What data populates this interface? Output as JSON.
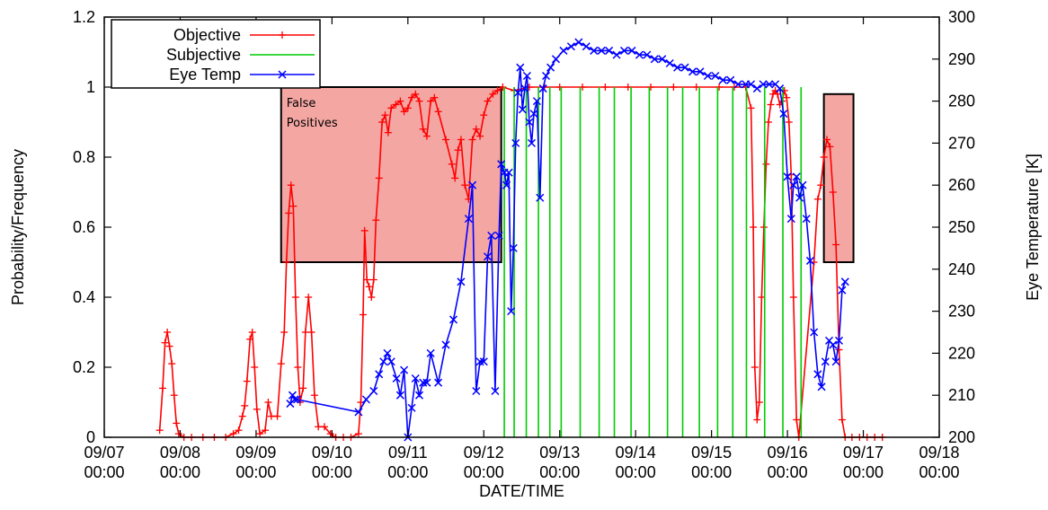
{
  "chart_data": {
    "type": "line",
    "xlabel": "DATE/TIME",
    "ylabel": "Probability/Frequency",
    "y2label": "Eye Temperature [K]",
    "xlim": [
      0,
      11
    ],
    "ylim": [
      0,
      1.2
    ],
    "y2lim": [
      200,
      300
    ],
    "x_unit": "days since 09/07 00:00",
    "x_ticks": [
      {
        "value": 0,
        "date": "09/07",
        "time": "00:00"
      },
      {
        "value": 1,
        "date": "09/08",
        "time": "00:00"
      },
      {
        "value": 2,
        "date": "09/09",
        "time": "00:00"
      },
      {
        "value": 3,
        "date": "09/10",
        "time": "00:00"
      },
      {
        "value": 4,
        "date": "09/11",
        "time": "00:00"
      },
      {
        "value": 5,
        "date": "09/12",
        "time": "00:00"
      },
      {
        "value": 6,
        "date": "09/13",
        "time": "00:00"
      },
      {
        "value": 7,
        "date": "09/14",
        "time": "00:00"
      },
      {
        "value": 8,
        "date": "09/15",
        "time": "00:00"
      },
      {
        "value": 9,
        "date": "09/16",
        "time": "00:00"
      },
      {
        "value": 10,
        "date": "09/17",
        "time": "00:00"
      },
      {
        "value": 11,
        "date": "09/18",
        "time": "00:00"
      }
    ],
    "y_ticks": [
      "0",
      "0.2",
      "0.4",
      "0.6",
      "0.8",
      "1",
      "1.2"
    ],
    "y2_ticks": [
      "200",
      "210",
      "220",
      "230",
      "240",
      "250",
      "260",
      "270",
      "280",
      "290",
      "300"
    ],
    "legend_position": "top-left",
    "series": [
      {
        "name": "Objective",
        "color": "#ff0000",
        "marker": "plus",
        "axis": "left",
        "points": [
          [
            0.73,
            0.02
          ],
          [
            0.77,
            0.14
          ],
          [
            0.8,
            0.27
          ],
          [
            0.83,
            0.3
          ],
          [
            0.86,
            0.26
          ],
          [
            0.89,
            0.21
          ],
          [
            0.92,
            0.12
          ],
          [
            0.95,
            0.04
          ],
          [
            0.98,
            0.01
          ],
          [
            1.05,
            0.0
          ],
          [
            1.15,
            0.0
          ],
          [
            1.3,
            0.0
          ],
          [
            1.45,
            0.0
          ],
          [
            1.6,
            0.0
          ],
          [
            1.7,
            0.01
          ],
          [
            1.77,
            0.02
          ],
          [
            1.82,
            0.06
          ],
          [
            1.85,
            0.09
          ],
          [
            1.88,
            0.16
          ],
          [
            1.92,
            0.28
          ],
          [
            1.95,
            0.3
          ],
          [
            1.98,
            0.2
          ],
          [
            2.01,
            0.08
          ],
          [
            2.05,
            0.01
          ],
          [
            2.12,
            0.02
          ],
          [
            2.16,
            0.1
          ],
          [
            2.2,
            0.06
          ],
          [
            2.28,
            0.06
          ],
          [
            2.33,
            0.21
          ],
          [
            2.37,
            0.3
          ],
          [
            2.4,
            0.5
          ],
          [
            2.43,
            0.64
          ],
          [
            2.46,
            0.72
          ],
          [
            2.49,
            0.66
          ],
          [
            2.52,
            0.4
          ],
          [
            2.55,
            0.2
          ],
          [
            2.58,
            0.1
          ],
          [
            2.62,
            0.14
          ],
          [
            2.65,
            0.3
          ],
          [
            2.69,
            0.4
          ],
          [
            2.73,
            0.3
          ],
          [
            2.77,
            0.12
          ],
          [
            2.82,
            0.03
          ],
          [
            2.9,
            0.03
          ],
          [
            2.98,
            0.01
          ],
          [
            3.05,
            0.0
          ],
          [
            3.15,
            0.0
          ],
          [
            3.25,
            0.0
          ],
          [
            3.35,
            0.01
          ],
          [
            3.38,
            0.1
          ],
          [
            3.41,
            0.35
          ],
          [
            3.43,
            0.59
          ],
          [
            3.46,
            0.45
          ],
          [
            3.49,
            0.43
          ],
          [
            3.52,
            0.4
          ],
          [
            3.55,
            0.45
          ],
          [
            3.58,
            0.62
          ],
          [
            3.62,
            0.74
          ],
          [
            3.66,
            0.9
          ],
          [
            3.7,
            0.92
          ],
          [
            3.74,
            0.87
          ],
          [
            3.78,
            0.94
          ],
          [
            3.84,
            0.95
          ],
          [
            3.9,
            0.96
          ],
          [
            3.95,
            0.93
          ],
          [
            4.0,
            0.94
          ],
          [
            4.05,
            0.97
          ],
          [
            4.1,
            0.98
          ],
          [
            4.15,
            0.96
          ],
          [
            4.2,
            0.88
          ],
          [
            4.25,
            0.86
          ],
          [
            4.3,
            0.96
          ],
          [
            4.35,
            0.97
          ],
          [
            4.4,
            0.93
          ],
          [
            4.5,
            0.85
          ],
          [
            4.58,
            0.78
          ],
          [
            4.62,
            0.74
          ],
          [
            4.66,
            0.82
          ],
          [
            4.7,
            0.85
          ],
          [
            4.75,
            0.72
          ],
          [
            4.8,
            0.68
          ],
          [
            4.85,
            0.85
          ],
          [
            4.9,
            0.88
          ],
          [
            4.95,
            0.86
          ],
          [
            5.0,
            0.92
          ],
          [
            5.05,
            0.96
          ],
          [
            5.12,
            0.98
          ],
          [
            5.18,
            0.99
          ],
          [
            5.25,
            1.0
          ],
          [
            5.4,
            0.99
          ],
          [
            5.6,
            1.0
          ],
          [
            5.8,
            1.0
          ],
          [
            6.0,
            1.0
          ],
          [
            6.3,
            1.0
          ],
          [
            6.6,
            1.0
          ],
          [
            6.9,
            1.0
          ],
          [
            7.2,
            1.0
          ],
          [
            7.5,
            1.0
          ],
          [
            7.8,
            1.0
          ],
          [
            8.1,
            1.0
          ],
          [
            8.3,
            1.0
          ],
          [
            8.45,
            1.0
          ],
          [
            8.52,
            0.94
          ],
          [
            8.55,
            0.6
          ],
          [
            8.57,
            0.2
          ],
          [
            8.6,
            0.05
          ],
          [
            8.63,
            0.1
          ],
          [
            8.66,
            0.4
          ],
          [
            8.69,
            0.6
          ],
          [
            8.72,
            0.78
          ],
          [
            8.75,
            0.9
          ],
          [
            8.78,
            0.95
          ],
          [
            8.81,
            0.98
          ],
          [
            8.84,
            0.99
          ],
          [
            8.87,
            0.98
          ],
          [
            8.9,
            0.95
          ],
          [
            8.93,
            0.96
          ],
          [
            8.96,
            0.99
          ],
          [
            8.99,
            0.97
          ],
          [
            9.02,
            0.9
          ],
          [
            9.05,
            0.75
          ],
          [
            9.08,
            0.4
          ],
          [
            9.12,
            0.05
          ],
          [
            9.15,
            0.0
          ],
          [
            9.35,
            0.5
          ],
          [
            9.4,
            0.68
          ],
          [
            9.44,
            0.72
          ],
          [
            9.48,
            0.8
          ],
          [
            9.52,
            0.85
          ],
          [
            9.56,
            0.83
          ],
          [
            9.6,
            0.7
          ],
          [
            9.64,
            0.55
          ],
          [
            9.68,
            0.25
          ],
          [
            9.72,
            0.05
          ],
          [
            9.76,
            0.0
          ],
          [
            9.85,
            0.0
          ],
          [
            9.95,
            0.0
          ],
          [
            10.05,
            0.0
          ],
          [
            10.15,
            0.0
          ],
          [
            10.25,
            0.0
          ]
        ]
      },
      {
        "name": "Subjective",
        "color": "#00cc00",
        "axis": "left",
        "impulse_times": [
          5.27,
          5.4,
          5.56,
          5.72,
          5.87,
          6.02,
          6.27,
          6.52,
          6.72,
          6.94,
          7.18,
          7.42,
          7.62,
          7.84,
          8.08,
          8.28,
          8.46,
          8.7,
          8.94,
          9.18
        ],
        "impulse_value": 1.0
      },
      {
        "name": "Eye Temp",
        "color": "#0000ff",
        "marker": "cross",
        "axis": "right",
        "points": [
          [
            2.45,
            208
          ],
          [
            2.48,
            210
          ],
          [
            2.51,
            209
          ],
          [
            2.54,
            209
          ],
          [
            3.35,
            206
          ],
          [
            3.45,
            209
          ],
          [
            3.55,
            211
          ],
          [
            3.62,
            215
          ],
          [
            3.68,
            218
          ],
          [
            3.73,
            220
          ],
          [
            3.78,
            218
          ],
          [
            3.85,
            214
          ],
          [
            3.9,
            210
          ],
          [
            3.95,
            216
          ],
          [
            4.0,
            200
          ],
          [
            4.05,
            207
          ],
          [
            4.1,
            214
          ],
          [
            4.15,
            210
          ],
          [
            4.2,
            213
          ],
          [
            4.25,
            213
          ],
          [
            4.3,
            220
          ],
          [
            4.4,
            213
          ],
          [
            4.5,
            222
          ],
          [
            4.6,
            228
          ],
          [
            4.7,
            237
          ],
          [
            4.8,
            252
          ],
          [
            4.85,
            260
          ],
          [
            4.9,
            211
          ],
          [
            4.95,
            218
          ],
          [
            5.0,
            218
          ],
          [
            5.05,
            243
          ],
          [
            5.1,
            248
          ],
          [
            5.15,
            211
          ],
          [
            5.2,
            248
          ],
          [
            5.23,
            265
          ],
          [
            5.27,
            263
          ],
          [
            5.3,
            260
          ],
          [
            5.33,
            263
          ],
          [
            5.36,
            230
          ],
          [
            5.39,
            245
          ],
          [
            5.42,
            270
          ],
          [
            5.45,
            282
          ],
          [
            5.48,
            288
          ],
          [
            5.51,
            278
          ],
          [
            5.54,
            283
          ],
          [
            5.57,
            286
          ],
          [
            5.6,
            275
          ],
          [
            5.63,
            270
          ],
          [
            5.66,
            277
          ],
          [
            5.7,
            280
          ],
          [
            5.74,
            257
          ],
          [
            5.78,
            283
          ],
          [
            5.82,
            286
          ],
          [
            5.88,
            288
          ],
          [
            5.95,
            290
          ],
          [
            6.05,
            292
          ],
          [
            6.15,
            293
          ],
          [
            6.25,
            294
          ],
          [
            6.35,
            293
          ],
          [
            6.45,
            292
          ],
          [
            6.55,
            292
          ],
          [
            6.65,
            292
          ],
          [
            6.75,
            291
          ],
          [
            6.85,
            292
          ],
          [
            6.95,
            292
          ],
          [
            7.05,
            291
          ],
          [
            7.15,
            291
          ],
          [
            7.25,
            290
          ],
          [
            7.35,
            290
          ],
          [
            7.45,
            289
          ],
          [
            7.55,
            288
          ],
          [
            7.65,
            288
          ],
          [
            7.75,
            287
          ],
          [
            7.85,
            287
          ],
          [
            7.95,
            286
          ],
          [
            8.05,
            286
          ],
          [
            8.15,
            285
          ],
          [
            8.25,
            285
          ],
          [
            8.35,
            284
          ],
          [
            8.45,
            284
          ],
          [
            8.52,
            284
          ],
          [
            8.6,
            283
          ],
          [
            8.68,
            284
          ],
          [
            8.76,
            284
          ],
          [
            8.84,
            284
          ],
          [
            8.9,
            283
          ],
          [
            8.95,
            277
          ],
          [
            9.0,
            262
          ],
          [
            9.05,
            252
          ],
          [
            9.08,
            260
          ],
          [
            9.12,
            262
          ],
          [
            9.16,
            257
          ],
          [
            9.2,
            260
          ],
          [
            9.25,
            252
          ],
          [
            9.3,
            242
          ],
          [
            9.35,
            225
          ],
          [
            9.4,
            215
          ],
          [
            9.45,
            212
          ],
          [
            9.5,
            218
          ],
          [
            9.55,
            223
          ],
          [
            9.6,
            222
          ],
          [
            9.64,
            218
          ],
          [
            9.68,
            223
          ],
          [
            9.72,
            235
          ],
          [
            9.76,
            237
          ]
        ]
      }
    ],
    "annotations": [
      {
        "type": "rect",
        "x0": 2.33,
        "x1": 5.23,
        "y0": 0.5,
        "y1": 1.0,
        "label_lines": [
          "False",
          "Positives"
        ],
        "fill": "#f4a6a3"
      },
      {
        "type": "rect",
        "x0": 9.48,
        "x1": 9.87,
        "y0": 0.5,
        "y1": 0.98,
        "label_lines": [],
        "fill": "#f4a6a3"
      }
    ]
  }
}
